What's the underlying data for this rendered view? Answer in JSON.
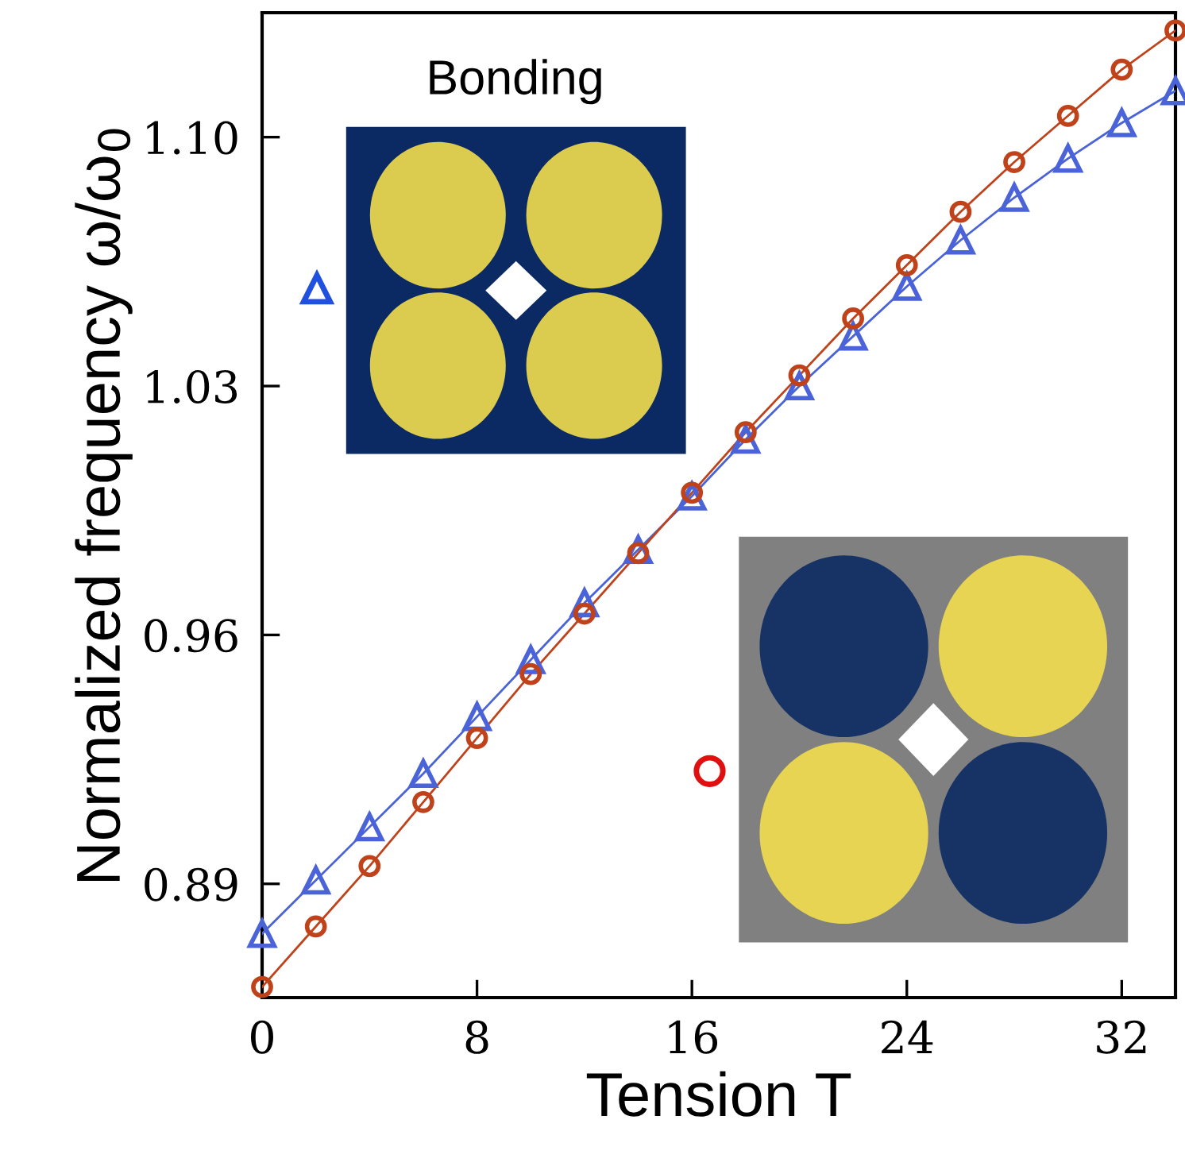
{
  "chart_data": {
    "type": "line",
    "xlabel": "Tension T",
    "ylabel": "Normalized frequency ω/ω$_{0}$",
    "annotations": [
      "Bonding"
    ],
    "xlim": [
      0,
      34
    ],
    "xticks": [
      0,
      8,
      16,
      24,
      32
    ],
    "ylim": [
      0.858,
      1.135
    ],
    "yticks": [
      0.89,
      0.96,
      1.03,
      {
        "value": 1.1,
        "label": "1.10"
      }
    ],
    "grid": false,
    "legend": false,
    "line_style": "solid",
    "series": [
      {
        "color": "#4a63d8",
        "marker": "triangle",
        "x": [
          0,
          2,
          4,
          6,
          8,
          10,
          12,
          14,
          16,
          18,
          20,
          22,
          24,
          26,
          28,
          30,
          32,
          34
        ],
        "values": [
          0.876,
          0.891,
          0.906,
          0.921,
          0.937,
          0.953,
          0.969,
          0.984,
          0.999,
          1.015,
          1.03,
          1.044,
          1.058,
          1.071,
          1.083,
          1.094,
          1.104,
          1.113
        ]
      },
      {
        "color": "#c0421a",
        "marker": "circle",
        "x": [
          0,
          2,
          4,
          6,
          8,
          10,
          12,
          14,
          16,
          18,
          20,
          22,
          24,
          26,
          28,
          30,
          32,
          34
        ],
        "values": [
          0.861,
          0.878,
          0.895,
          0.913,
          0.931,
          0.949,
          0.966,
          0.983,
          1.0,
          1.017,
          1.033,
          1.049,
          1.064,
          1.079,
          1.093,
          1.106,
          1.119,
          1.13
        ]
      }
    ]
  }
}
